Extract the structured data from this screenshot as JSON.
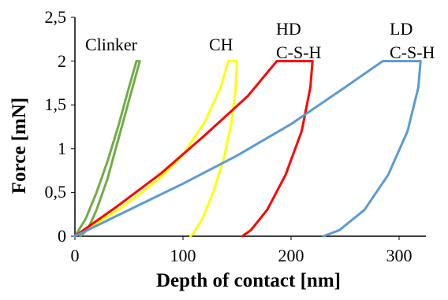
{
  "chart_data": {
    "type": "line",
    "title": "",
    "xlabel": "Depth of contact [nm]",
    "ylabel": "Force [mN]",
    "xlim": [
      0,
      325
    ],
    "ylim": [
      0,
      2.5
    ],
    "x_ticks": [
      "0",
      "100",
      "200",
      "300"
    ],
    "y_ticks": [
      "0",
      "0,5",
      "1",
      "1,5",
      "2",
      "2,5"
    ],
    "grid": false,
    "legend": "none",
    "series": [
      {
        "name": "Clinker",
        "color": "#70ad47",
        "loading": {
          "x": [
            0,
            10,
            20,
            30,
            40,
            50,
            57
          ],
          "y": [
            0,
            0.2,
            0.5,
            0.85,
            1.25,
            1.7,
            2.0
          ]
        },
        "unloading": {
          "x": [
            60,
            50,
            40,
            30,
            20,
            12,
            5
          ],
          "y": [
            2.0,
            1.55,
            1.1,
            0.65,
            0.3,
            0.08,
            0
          ]
        }
      },
      {
        "name": "CH",
        "color": "#ffff00",
        "loading": {
          "x": [
            0,
            20,
            40,
            60,
            80,
            100,
            120,
            135,
            142
          ],
          "y": [
            0,
            0.15,
            0.3,
            0.48,
            0.68,
            0.93,
            1.3,
            1.7,
            2.0
          ]
        },
        "unloading": {
          "x": [
            150,
            149,
            145,
            138,
            128,
            118,
            110,
            107
          ],
          "y": [
            2.0,
            1.7,
            1.3,
            0.9,
            0.5,
            0.2,
            0.04,
            0
          ]
        }
      },
      {
        "name": "HD C-S-H",
        "color": "#ff0000",
        "loading": {
          "x": [
            0,
            40,
            80,
            120,
            160,
            187
          ],
          "y": [
            0,
            0.35,
            0.72,
            1.15,
            1.6,
            2.0
          ]
        },
        "unloading": {
          "x": [
            220,
            218,
            210,
            195,
            178,
            163,
            155
          ],
          "y": [
            2.0,
            1.7,
            1.2,
            0.7,
            0.3,
            0.07,
            0
          ]
        }
      },
      {
        "name": "LD C-S-H",
        "color": "#5b9bd5",
        "loading": {
          "x": [
            0,
            50,
            100,
            150,
            200,
            250,
            285
          ],
          "y": [
            0,
            0.3,
            0.6,
            0.92,
            1.28,
            1.7,
            2.0
          ]
        },
        "unloading": {
          "x": [
            320,
            318,
            308,
            290,
            268,
            245,
            230
          ],
          "y": [
            2.0,
            1.7,
            1.2,
            0.7,
            0.3,
            0.07,
            0
          ]
        }
      }
    ],
    "hold_force": 2.0
  }
}
